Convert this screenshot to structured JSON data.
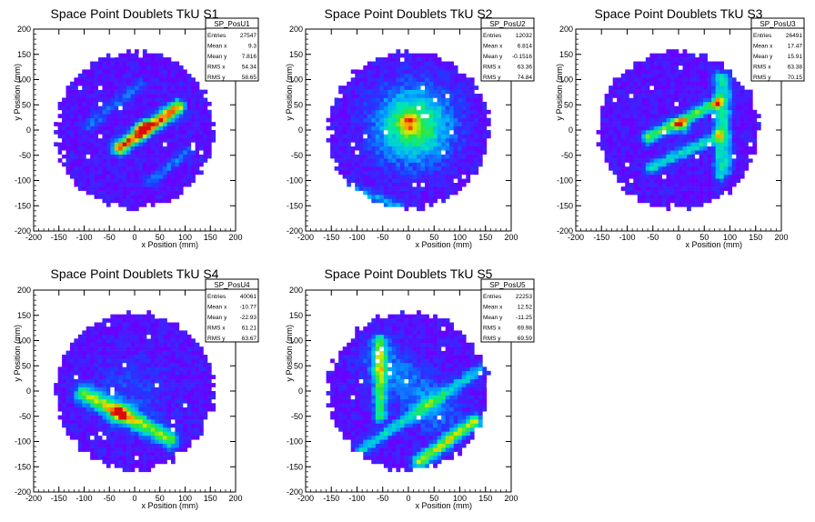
{
  "colors": {
    "fill": "#6a00ff",
    "axis": "#000000",
    "background": "#ffffff"
  },
  "chart_data": [
    {
      "type": "heatmap",
      "title": "Space Point Doublets TkU S1",
      "xlabel": "x Position (mm)",
      "ylabel": "y Position (mm)",
      "xlim": [
        -200,
        200
      ],
      "ylim": [
        -200,
        200
      ],
      "xticks": [
        "-200",
        "-150",
        "-100",
        "-50",
        "0",
        "50",
        "100",
        "150",
        "200"
      ],
      "yticks": [
        "-200",
        "-150",
        "-100",
        "-50",
        "0",
        "50",
        "100",
        "150",
        "200"
      ],
      "stats": {
        "name": "SP_PosU1",
        "rows": [
          {
            "label": "Entries",
            "value": "27547"
          },
          {
            "label": "Mean x",
            "value": "9.3"
          },
          {
            "label": "Mean y",
            "value": "7.816"
          },
          {
            "label": "RMS x",
            "value": "54.34"
          },
          {
            "label": "RMS y",
            "value": "58.65"
          }
        ]
      },
      "disk_radius": 160,
      "features": [
        {
          "kind": "line",
          "from": [
            -30,
            -35
          ],
          "to": [
            85,
            45
          ],
          "width": 10,
          "peak": 0.9
        },
        {
          "kind": "line",
          "from": [
            -90,
            10
          ],
          "to": [
            10,
            90
          ],
          "width": 8,
          "peak": 0.2
        },
        {
          "kind": "line",
          "from": [
            30,
            -100
          ],
          "to": [
            110,
            -40
          ],
          "width": 8,
          "peak": 0.2
        },
        {
          "kind": "spot",
          "center": [
            15,
            5
          ],
          "sigma": 10,
          "peak": 0.6
        }
      ]
    },
    {
      "type": "heatmap",
      "title": "Space Point Doublets TkU S2",
      "xlabel": "x Position (mm)",
      "ylabel": "y Position (mm)",
      "xlim": [
        -200,
        200
      ],
      "ylim": [
        -200,
        200
      ],
      "xticks": [
        "-200",
        "-150",
        "-100",
        "-50",
        "0",
        "50",
        "100",
        "150",
        "200"
      ],
      "yticks": [
        "-200",
        "-150",
        "-100",
        "-50",
        "0",
        "50",
        "100",
        "150",
        "200"
      ],
      "stats": {
        "name": "SP_PosU2",
        "rows": [
          {
            "label": "Entries",
            "value": "12032"
          },
          {
            "label": "Mean x",
            "value": "6.814"
          },
          {
            "label": "Mean y",
            "value": "-0.1516"
          },
          {
            "label": "RMS x",
            "value": "63.36"
          },
          {
            "label": "RMS y",
            "value": "74.84"
          }
        ]
      },
      "disk_radius": 160,
      "features": [
        {
          "kind": "spot",
          "center": [
            10,
            10
          ],
          "sigma": 50,
          "peak": 0.65
        },
        {
          "kind": "spot",
          "center": [
            0,
            15
          ],
          "sigma": 12,
          "peak": 0.3
        },
        {
          "kind": "line",
          "from": [
            -130,
            -110
          ],
          "to": [
            -20,
            -150
          ],
          "width": 8,
          "peak": 0.3
        }
      ]
    },
    {
      "type": "heatmap",
      "title": "Space Point Doublets TkU S3",
      "xlabel": "x Position (mm)",
      "ylabel": "y Position (mm)",
      "xlim": [
        -200,
        200
      ],
      "ylim": [
        -200,
        200
      ],
      "xticks": [
        "-200",
        "-150",
        "-100",
        "-50",
        "0",
        "50",
        "100",
        "150",
        "200"
      ],
      "yticks": [
        "-200",
        "-150",
        "-100",
        "-50",
        "0",
        "50",
        "100",
        "150",
        "200"
      ],
      "stats": {
        "name": "SP_PosU3",
        "rows": [
          {
            "label": "Entries",
            "value": "26491"
          },
          {
            "label": "Mean x",
            "value": "17.47"
          },
          {
            "label": "Mean y",
            "value": "15.91"
          },
          {
            "label": "RMS x",
            "value": "63.38"
          },
          {
            "label": "RMS y",
            "value": "70.15"
          }
        ]
      },
      "disk_radius": 160,
      "features": [
        {
          "kind": "line",
          "from": [
            -60,
            -15
          ],
          "to": [
            75,
            55
          ],
          "width": 8,
          "peak": 0.65
        },
        {
          "kind": "line",
          "from": [
            -55,
            -75
          ],
          "to": [
            80,
            -10
          ],
          "width": 8,
          "peak": 0.45
        },
        {
          "kind": "line",
          "from": [
            80,
            -90
          ],
          "to": [
            80,
            105
          ],
          "width": 8,
          "peak": 0.4
        },
        {
          "kind": "line",
          "from": [
            95,
            -80
          ],
          "to": [
            95,
            100
          ],
          "width": 7,
          "peak": 0.3
        },
        {
          "kind": "spot",
          "center": [
            5,
            8
          ],
          "sigma": 10,
          "peak": 0.5
        }
      ]
    },
    {
      "type": "heatmap",
      "title": "Space Point Doublets TkU S4",
      "xlabel": "x Position (mm)",
      "ylabel": "y Position (mm)",
      "xlim": [
        -200,
        200
      ],
      "ylim": [
        -200,
        200
      ],
      "xticks": [
        "-200",
        "-150",
        "-100",
        "-50",
        "0",
        "50",
        "100",
        "150",
        "200"
      ],
      "yticks": [
        "-200",
        "-150",
        "-100",
        "-50",
        "0",
        "50",
        "100",
        "150",
        "200"
      ],
      "stats": {
        "name": "SP_PosU4",
        "rows": [
          {
            "label": "Entries",
            "value": "40061"
          },
          {
            "label": "Mean x",
            "value": "-10.77"
          },
          {
            "label": "Mean y",
            "value": "-22.93"
          },
          {
            "label": "RMS x",
            "value": "61.21"
          },
          {
            "label": "RMS y",
            "value": "63.67"
          }
        ]
      },
      "disk_radius": 160,
      "features": [
        {
          "kind": "line",
          "from": [
            -100,
            -5
          ],
          "to": [
            70,
            -95
          ],
          "width": 12,
          "peak": 0.65
        },
        {
          "kind": "spot",
          "center": [
            -30,
            -45
          ],
          "sigma": 14,
          "peak": 0.45
        },
        {
          "kind": "spot",
          "center": [
            -10,
            -5
          ],
          "sigma": 50,
          "peak": 0.12
        }
      ]
    },
    {
      "type": "heatmap",
      "title": "Space Point Doublets TkU S5",
      "xlabel": "x Position (mm)",
      "ylabel": "y Position (mm)",
      "xlim": [
        -200,
        200
      ],
      "ylim": [
        -200,
        200
      ],
      "xticks": [
        "-200",
        "-150",
        "-100",
        "-50",
        "0",
        "50",
        "100",
        "150",
        "200"
      ],
      "yticks": [
        "-200",
        "-150",
        "-100",
        "-50",
        "0",
        "50",
        "100",
        "150",
        "200"
      ],
      "stats": {
        "name": "SP_PosU5",
        "rows": [
          {
            "label": "Entries",
            "value": "22253"
          },
          {
            "label": "Mean x",
            "value": "12.52"
          },
          {
            "label": "Mean y",
            "value": "-11.25"
          },
          {
            "label": "RMS x",
            "value": "69.98"
          },
          {
            "label": "RMS y",
            "value": "69.59"
          }
        ]
      },
      "disk_radius": 160,
      "features": [
        {
          "kind": "line",
          "from": [
            -55,
            -50
          ],
          "to": [
            -55,
            100
          ],
          "width": 9,
          "peak": 0.55
        },
        {
          "kind": "line",
          "from": [
            -90,
            -115
          ],
          "to": [
            135,
            40
          ],
          "width": 8,
          "peak": 0.4
        },
        {
          "kind": "line",
          "from": [
            20,
            -140
          ],
          "to": [
            130,
            -60
          ],
          "width": 9,
          "peak": 0.7
        },
        {
          "kind": "line",
          "from": [
            -50,
            60
          ],
          "to": [
            55,
            -40
          ],
          "width": 30,
          "peak": 0.25
        }
      ]
    }
  ]
}
